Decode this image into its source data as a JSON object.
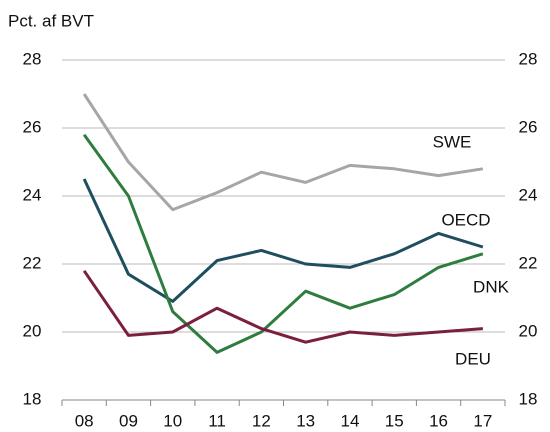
{
  "chart_data": {
    "type": "line",
    "y_label": "Pct. af BVT",
    "categories": [
      "08",
      "09",
      "10",
      "11",
      "12",
      "13",
      "14",
      "15",
      "16",
      "17"
    ],
    "series": [
      {
        "name": "SWE",
        "color": "#a6a6a6",
        "values": [
          27.0,
          25.0,
          23.6,
          24.1,
          24.7,
          24.4,
          24.9,
          24.8,
          24.6,
          24.8
        ]
      },
      {
        "name": "OECD",
        "color": "#1f4e5f",
        "values": [
          24.5,
          21.7,
          20.9,
          22.1,
          22.4,
          22.0,
          21.9,
          22.3,
          22.9,
          22.5
        ]
      },
      {
        "name": "DNK",
        "color": "#2e7d3e",
        "values": [
          25.8,
          24.0,
          20.6,
          19.4,
          20.0,
          21.2,
          20.7,
          21.1,
          21.9,
          22.3
        ]
      },
      {
        "name": "DEU",
        "color": "#7b1f3f",
        "values": [
          21.8,
          19.9,
          20.0,
          20.7,
          20.1,
          19.7,
          20.0,
          19.9,
          20.0,
          20.1
        ]
      }
    ],
    "ylim": [
      18,
      28
    ],
    "yticks": [
      18,
      20,
      22,
      24,
      26,
      28
    ],
    "y2lim": [
      18,
      28
    ],
    "y2ticks": [
      18,
      20,
      22,
      24,
      26,
      28
    ],
    "grid": true
  }
}
